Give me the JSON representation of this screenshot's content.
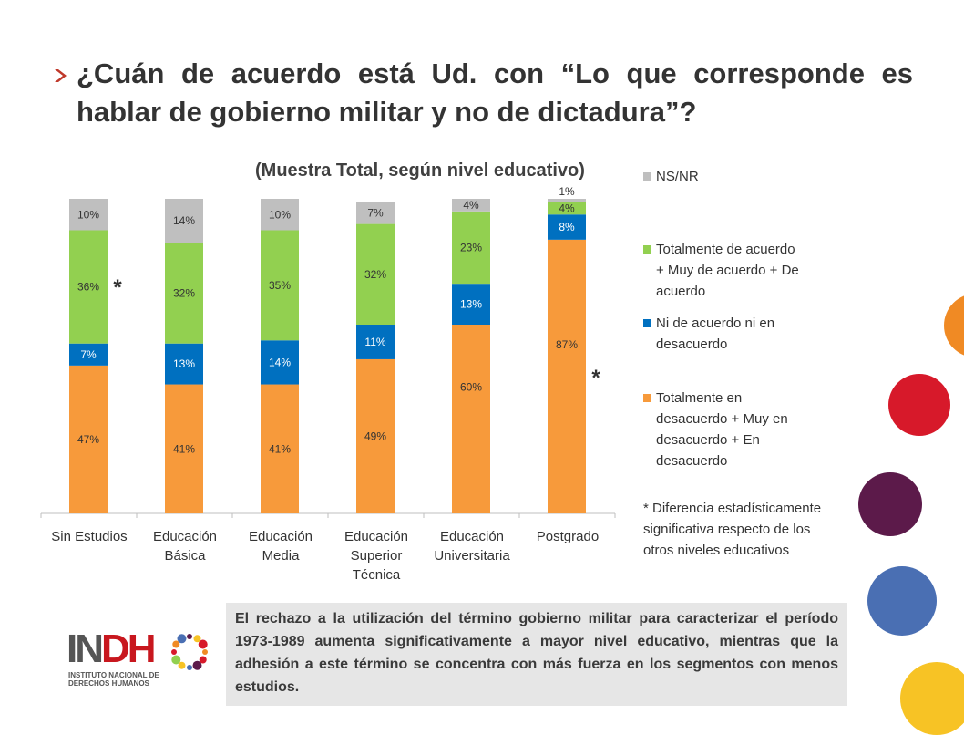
{
  "title": {
    "line1": "¿Cuán de acuerdo está Ud. con “Lo que corresponde es",
    "line2": "hablar de gobierno militar y no de dictadura”?"
  },
  "colors": {
    "nsnr": "#bfbfbf",
    "acuerdo": "#92d050",
    "ni": "#0070c0",
    "desacuerdo": "#f79a3b",
    "title_arrow": "#c0392b"
  },
  "chart_data": {
    "type": "bar",
    "stacked": true,
    "title": "(Muestra Total, según nivel educativo)",
    "categories": [
      "Sin Estudios",
      "Educación Básica",
      "Educación Media",
      "Educación Superior Técnica",
      "Educación Universitaria",
      "Postgrado"
    ],
    "category_lines": [
      [
        "Sin Estudios"
      ],
      [
        "Educación",
        "Básica"
      ],
      [
        "Educación",
        "Media"
      ],
      [
        "Educación",
        "Superior",
        "Técnica"
      ],
      [
        "Educación",
        "Universitaria"
      ],
      [
        "Postgrado"
      ]
    ],
    "series": [
      {
        "name": "Totalmente en desacuerdo + Muy en desacuerdo + En desacuerdo",
        "color": "#f79a3b",
        "values": [
          47,
          41,
          41,
          49,
          60,
          87
        ]
      },
      {
        "name": "Ni de acuerdo ni en desacuerdo",
        "color": "#0070c0",
        "values": [
          7,
          13,
          14,
          11,
          13,
          8
        ]
      },
      {
        "name": "Totalmente de acuerdo + Muy de acuerdo + De acuerdo",
        "color": "#92d050",
        "values": [
          36,
          32,
          35,
          32,
          23,
          4
        ]
      },
      {
        "name": "NS/NR",
        "color": "#bfbfbf",
        "values": [
          10,
          14,
          10,
          7,
          4,
          1
        ]
      }
    ],
    "ylim": [
      0,
      100
    ],
    "significance_marks": [
      {
        "category": "Sin Estudios",
        "series": "Totalmente de acuerdo + Muy de acuerdo + De acuerdo",
        "mark": "*"
      },
      {
        "category": "Postgrado",
        "series": "Totalmente en desacuerdo + Muy en desacuerdo + En desacuerdo",
        "mark": "*"
      }
    ],
    "grid": false,
    "legend_position": "right"
  },
  "legend": [
    {
      "label_lines": [
        "NS/NR"
      ],
      "color": "#bfbfbf"
    },
    {
      "label_lines": [
        "Totalmente de acuerdo",
        "+ Muy de acuerdo + De",
        "acuerdo"
      ],
      "color": "#92d050"
    },
    {
      "label_lines": [
        "Ni de acuerdo ni en",
        "desacuerdo"
      ],
      "color": "#0070c0"
    },
    {
      "label_lines": [
        "Totalmente en",
        "desacuerdo + Muy en",
        "desacuerdo + En",
        "desacuerdo"
      ],
      "color": "#f79a3b"
    }
  ],
  "note": "* Diferencia estadísticamente significativa respecto de los otros niveles educativos",
  "summary": "El rechazo a la utilización del término gobierno militar para caracterizar el período 1973-1989 aumenta significativamente a mayor nivel educativo, mientras que la adhesión a este término se concentra con más fuerza en los segmentos con menos estudios.",
  "logo": {
    "name_part1": "IN",
    "name_part2": "DH",
    "subtitle_line1": "INSTITUTO NACIONAL DE",
    "subtitle_line2": "DERECHOS HUMANOS"
  },
  "decor_circles": [
    "#f08a24",
    "#d7192a",
    "#5c1a4a",
    "#4a6fb3",
    "#f7c325"
  ]
}
